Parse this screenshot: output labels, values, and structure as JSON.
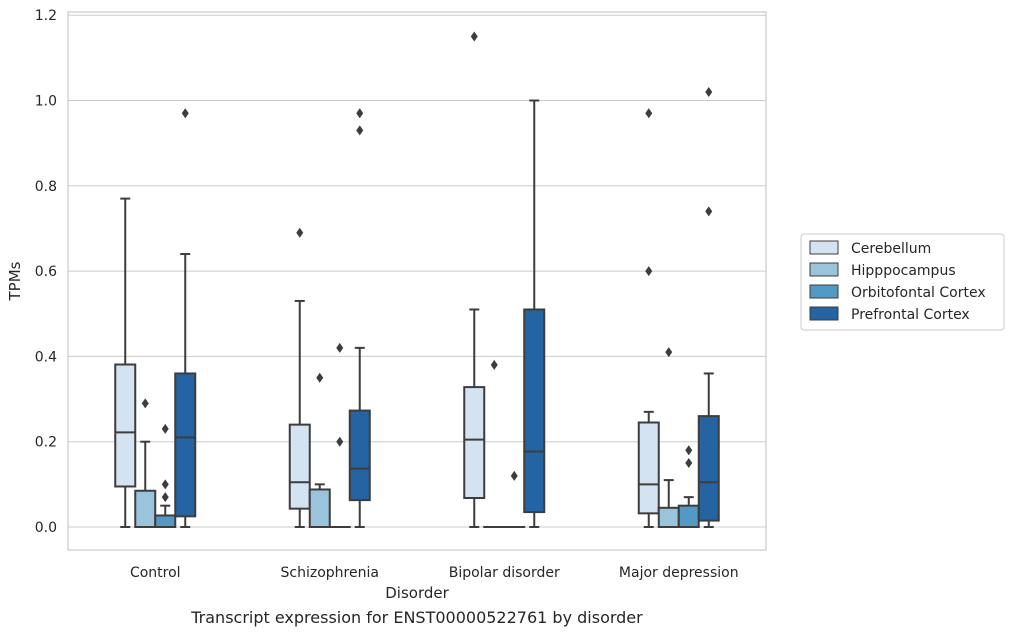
{
  "caption": "Transcript expression for ENST00000522761 by disorder",
  "chart_data": {
    "type": "box",
    "title": "",
    "xlabel": "Disorder",
    "ylabel": "TPMs",
    "ylim": [
      -0.055,
      1.215
    ],
    "yticks": [
      "0.0",
      "0.2",
      "0.4",
      "0.6",
      "0.8",
      "1.0",
      "1.2"
    ],
    "ytick_values": [
      0,
      0.2,
      0.4,
      0.6,
      0.8,
      1.0,
      1.2
    ],
    "grid": "horizontal",
    "legend_position": "right",
    "categories": [
      "Control",
      "Schizophrenia",
      "Bipolar disorder",
      "Major depression"
    ],
    "series": [
      {
        "name": "Cerebellum",
        "color": "#d4e3f2",
        "boxes": [
          {
            "whislo": 0.0,
            "q1": 0.095,
            "med": 0.222,
            "q3": 0.381,
            "whishi": 0.77,
            "fliers": []
          },
          {
            "whislo": 0.0,
            "q1": 0.043,
            "med": 0.105,
            "q3": 0.24,
            "whishi": 0.53,
            "fliers": [
              0.69
            ]
          },
          {
            "whislo": 0.0,
            "q1": 0.068,
            "med": 0.205,
            "q3": 0.328,
            "whishi": 0.51,
            "fliers": [
              1.15
            ]
          },
          {
            "whislo": 0.0,
            "q1": 0.032,
            "med": 0.1,
            "q3": 0.245,
            "whishi": 0.27,
            "fliers": [
              0.6,
              0.97
            ]
          }
        ]
      },
      {
        "name": "Hipppocampus",
        "color": "#9ac3dc",
        "boxes": [
          {
            "whislo": 0.0,
            "q1": 0.0,
            "med": 0.0,
            "q3": 0.085,
            "whishi": 0.2,
            "fliers": [
              0.29
            ]
          },
          {
            "whislo": 0.0,
            "q1": 0.0,
            "med": 0.0,
            "q3": 0.088,
            "whishi": 0.1,
            "fliers": [
              0.35
            ]
          },
          {
            "whislo": 0.0,
            "q1": 0.0,
            "med": 0.0,
            "q3": 0.0,
            "whishi": 0.0,
            "fliers": [
              0.38
            ]
          },
          {
            "whislo": 0.0,
            "q1": 0.0,
            "med": 0.0,
            "q3": 0.045,
            "whishi": 0.11,
            "fliers": [
              0.41
            ]
          }
        ]
      },
      {
        "name": "Orbitofontal Cortex",
        "color": "#5399c6",
        "boxes": [
          {
            "whislo": 0.0,
            "q1": 0.0,
            "med": 0.0,
            "q3": 0.027,
            "whishi": 0.05,
            "fliers": [
              0.07,
              0.1,
              0.23
            ]
          },
          {
            "whislo": 0.0,
            "q1": 0.0,
            "med": 0.0,
            "q3": 0.0,
            "whishi": 0.0,
            "fliers": [
              0.2,
              0.42
            ]
          },
          {
            "whislo": 0.0,
            "q1": 0.0,
            "med": 0.0,
            "q3": 0.0,
            "whishi": 0.0,
            "fliers": [
              0.12
            ]
          },
          {
            "whislo": 0.0,
            "q1": 0.0,
            "med": 0.0,
            "q3": 0.05,
            "whishi": 0.07,
            "fliers": [
              0.15,
              0.18
            ]
          }
        ]
      },
      {
        "name": "Prefrontal Cortex",
        "color": "#2464a3",
        "boxes": [
          {
            "whislo": 0.0,
            "q1": 0.025,
            "med": 0.21,
            "q3": 0.36,
            "whishi": 0.64,
            "fliers": [
              0.97
            ]
          },
          {
            "whislo": 0.0,
            "q1": 0.063,
            "med": 0.137,
            "q3": 0.273,
            "whishi": 0.42,
            "fliers": [
              0.93,
              0.97
            ]
          },
          {
            "whislo": 0.0,
            "q1": 0.035,
            "med": 0.177,
            "q3": 0.51,
            "whishi": 1.0,
            "fliers": []
          },
          {
            "whislo": 0.0,
            "q1": 0.015,
            "med": 0.105,
            "q3": 0.26,
            "whishi": 0.36,
            "fliers": [
              0.74,
              1.02
            ]
          }
        ]
      }
    ]
  }
}
